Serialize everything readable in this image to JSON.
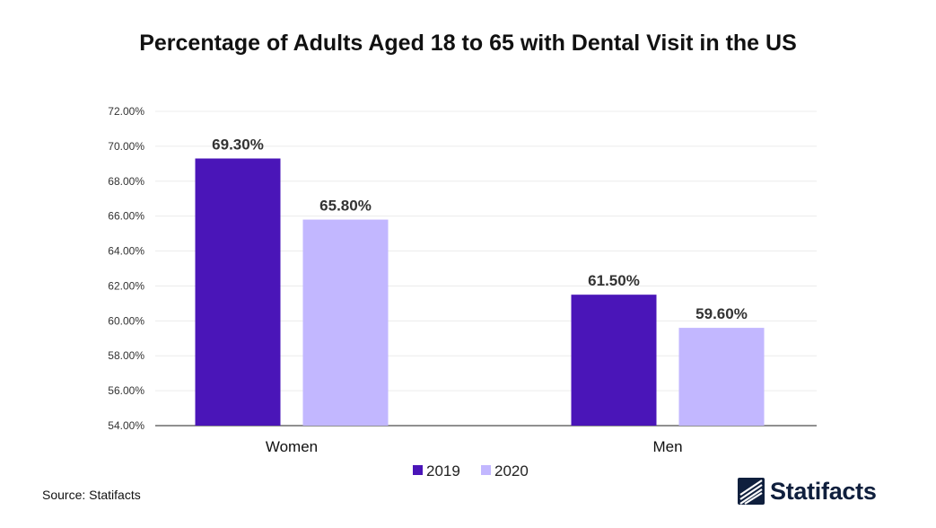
{
  "chart_data": {
    "type": "bar",
    "title": "Percentage of Adults Aged 18 to 65 with Dental Visit in the US",
    "categories": [
      "Women",
      "Men"
    ],
    "series": [
      {
        "name": "2019",
        "color": "#4a15b8",
        "values": [
          69.3,
          61.5
        ],
        "labels": [
          "69.30%",
          "61.50%"
        ]
      },
      {
        "name": "2020",
        "color": "#c2b7ff",
        "values": [
          65.8,
          59.6
        ],
        "labels": [
          "65.80%",
          "59.60%"
        ]
      }
    ],
    "ylim": [
      54,
      72
    ],
    "yticks": [
      54,
      56,
      58,
      60,
      62,
      64,
      66,
      68,
      70,
      72
    ],
    "ytick_labels": [
      "54.00%",
      "56.00%",
      "58.00%",
      "60.00%",
      "62.00%",
      "64.00%",
      "66.00%",
      "68.00%",
      "70.00%",
      "72.00%"
    ],
    "xlabel": "",
    "ylabel": "",
    "grid": true,
    "legend_position": "bottom-center"
  },
  "footer": {
    "source": "Source: Statifacts",
    "brand": "Statifacts"
  }
}
